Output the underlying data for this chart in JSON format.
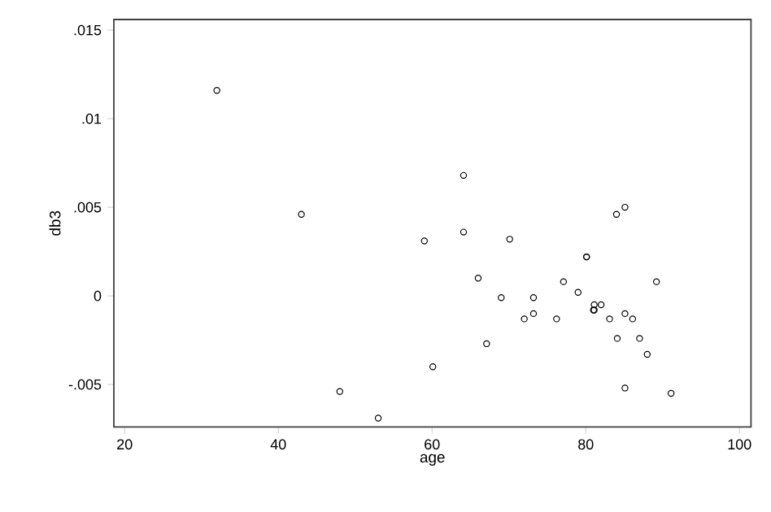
{
  "chart_data": {
    "type": "scatter",
    "xlabel": "age",
    "ylabel": "db3",
    "marker": "circle",
    "grid": false,
    "xlim": [
      18.6,
      101.5
    ],
    "ylim": [
      -0.0074,
      0.0156
    ],
    "xticks": [
      20,
      40,
      60,
      80,
      100
    ],
    "yticks": [
      {
        "value": -0.005,
        "label": "-.005"
      },
      {
        "value": 0,
        "label": "0"
      },
      {
        "value": 0.005,
        "label": ".005"
      },
      {
        "value": 0.01,
        "label": ".01"
      },
      {
        "value": 0.015,
        "label": ".015"
      }
    ],
    "series": [
      {
        "color": "#000000",
        "x": [
          32.0,
          43.0,
          48.0,
          53.0,
          64.1,
          64.1,
          59.0,
          70.1,
          80.1,
          80.1,
          84.0,
          85.1,
          66.0,
          77.1,
          89.2,
          69.0,
          79.0,
          73.2,
          81.1,
          82.0,
          81.0,
          81.1,
          73.2,
          72.0,
          76.2,
          83.1,
          85.1,
          86.1,
          84.1,
          87.0,
          88.0,
          67.1,
          60.1,
          85.1,
          91.1
        ],
        "values": [
          0.0116,
          0.0046,
          -0.0054,
          -0.0069,
          0.0068,
          0.0036,
          0.0031,
          0.0032,
          0.0022,
          0.0022,
          0.0046,
          0.005,
          0.001,
          0.0008,
          0.0008,
          -0.0001,
          0.0002,
          -0.0001,
          -0.0005,
          -0.0005,
          -0.0008,
          -0.0008,
          -0.001,
          -0.0013,
          -0.0013,
          -0.0013,
          -0.001,
          -0.0013,
          -0.0024,
          -0.0024,
          -0.0033,
          -0.0027,
          -0.004,
          -0.0052,
          -0.0055
        ]
      }
    ]
  }
}
